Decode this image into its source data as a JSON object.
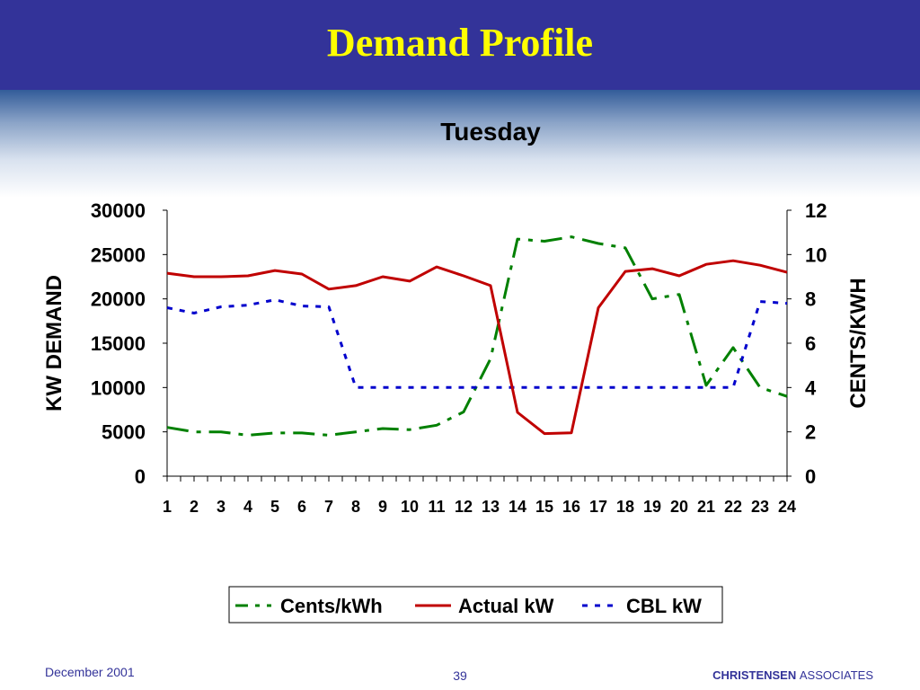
{
  "slide": {
    "title": "Demand Profile",
    "footer_date": "December 2001",
    "page_number": "39",
    "company_bold": "CHRISTENSEN",
    "company_rest": "ASSOCIATES"
  },
  "colors": {
    "title_bar": "#333399",
    "title_text": "#ffff00",
    "cents": "#008000",
    "actual": "#c00000",
    "cbl": "#0000cc"
  },
  "chart_data": {
    "type": "line",
    "title": "Tuesday",
    "xlabel": "",
    "ylabel": "KW DEMAND",
    "y2label": "CENTS/KWH",
    "categories": [
      "1",
      "2",
      "3",
      "4",
      "5",
      "6",
      "7",
      "8",
      "9",
      "10",
      "11",
      "12",
      "13",
      "14",
      "15",
      "16",
      "17",
      "18",
      "19",
      "20",
      "21",
      "22",
      "23",
      "24"
    ],
    "ylim": [
      0,
      30000
    ],
    "y_ticks": [
      "0",
      "5000",
      "10000",
      "15000",
      "20000",
      "25000",
      "30000"
    ],
    "y2lim": [
      0,
      12
    ],
    "y2_ticks": [
      "0",
      "2",
      "4",
      "6",
      "8",
      "10",
      "12"
    ],
    "grid": false,
    "legend_position": "bottom",
    "series": [
      {
        "name": "Cents/kWh",
        "axis": "right",
        "style": "dash-dot",
        "values": [
          2.2,
          2.0,
          2.0,
          1.85,
          1.95,
          1.95,
          1.85,
          2.0,
          2.15,
          2.1,
          2.3,
          2.9,
          5.3,
          10.7,
          10.6,
          10.8,
          10.5,
          10.3,
          8.0,
          8.2,
          4.1,
          5.8,
          4.0,
          3.6
        ]
      },
      {
        "name": "Actual kW",
        "axis": "left",
        "style": "solid",
        "values": [
          22900,
          22500,
          22500,
          22600,
          23200,
          22800,
          21100,
          21500,
          22500,
          22000,
          23600,
          22600,
          21500,
          7200,
          4800,
          4900,
          19000,
          23100,
          23400,
          22600,
          23900,
          24300,
          23800,
          23000
        ]
      },
      {
        "name": "CBL kW",
        "axis": "left",
        "style": "dotted",
        "values": [
          19000,
          18400,
          19100,
          19300,
          19900,
          19200,
          19100,
          10000,
          10000,
          10000,
          10000,
          10000,
          10000,
          10000,
          10000,
          10000,
          10000,
          10000,
          10000,
          10000,
          10000,
          10000,
          19700,
          19500
        ]
      }
    ]
  }
}
